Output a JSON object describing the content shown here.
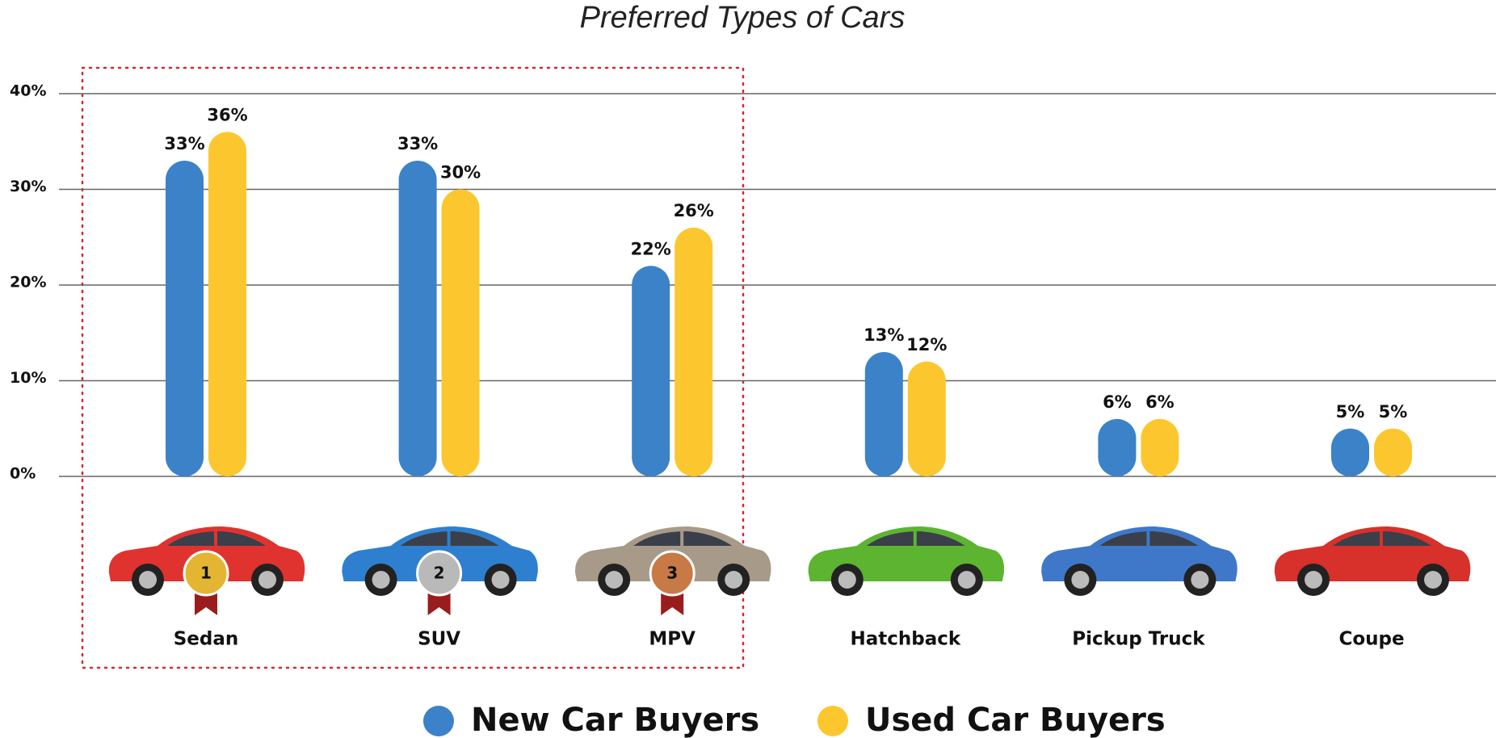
{
  "chart_data": {
    "type": "bar",
    "title": "Preferred Types of Cars",
    "categories": [
      "Sedan",
      "SUV",
      "MPV",
      "Hatchback",
      "Pickup Truck",
      "Coupe"
    ],
    "series": [
      {
        "name": "New Car Buyers",
        "color": "#3b82c8",
        "values": [
          33,
          33,
          22,
          13,
          6,
          5
        ],
        "value_labels": [
          "33%",
          "33%",
          "22%",
          "13%",
          "6%",
          "5%"
        ]
      },
      {
        "name": "Used Car Buyers",
        "color": "#fcc72e",
        "values": [
          36,
          30,
          26,
          12,
          6,
          5
        ],
        "value_labels": [
          "36%",
          "30%",
          "26%",
          "12%",
          "6%",
          "5%"
        ]
      }
    ],
    "ylim": [
      0,
      40
    ],
    "yticks": [
      {
        "value": 0,
        "label": "0%"
      },
      {
        "value": 10,
        "label": "10%"
      },
      {
        "value": 20,
        "label": "20%"
      },
      {
        "value": 30,
        "label": "30%"
      },
      {
        "value": 40,
        "label": "40%"
      }
    ],
    "grid": true,
    "legend": "bottom",
    "rank_badges": [
      "1",
      "2",
      "3"
    ]
  }
}
